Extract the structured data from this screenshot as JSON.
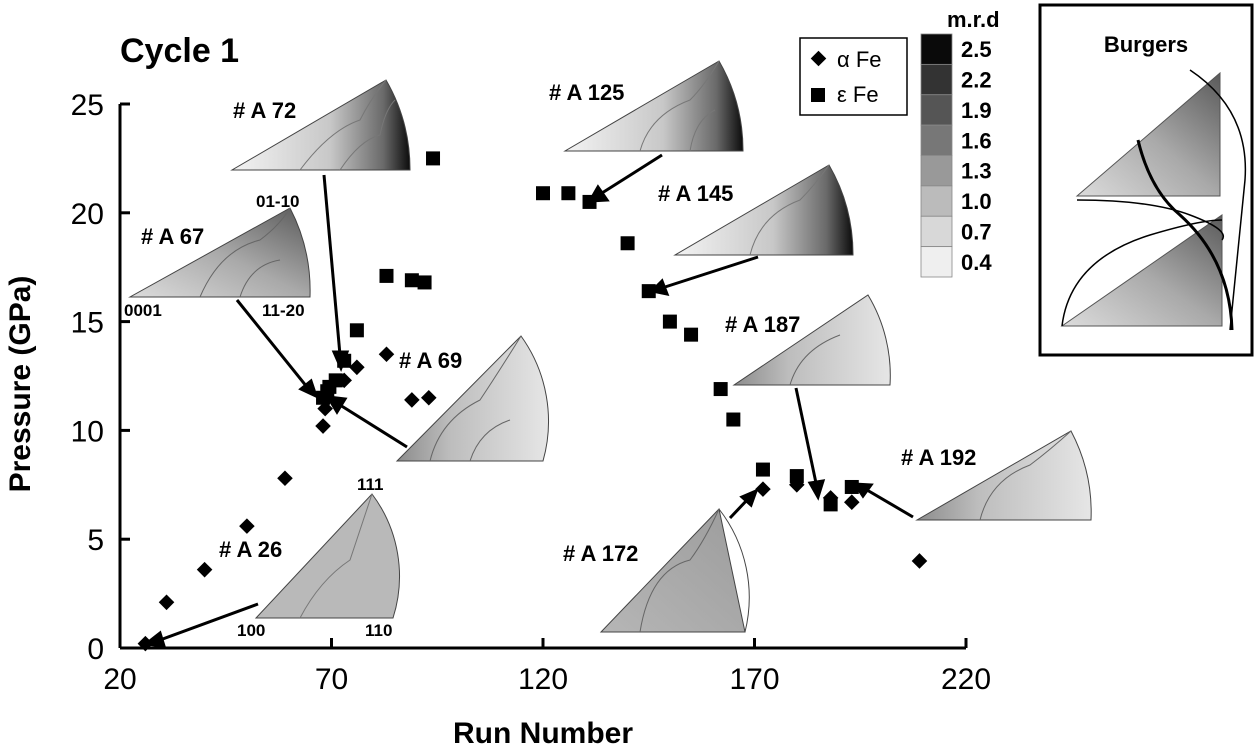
{
  "chart_data": {
    "type": "scatter",
    "title": "Cycle 1",
    "xlabel": "Run Number",
    "ylabel": "Pressure (GPa)",
    "xlim": [
      20,
      220
    ],
    "ylim": [
      0,
      25
    ],
    "xticks": [
      "20",
      "70",
      "120",
      "170",
      "220"
    ],
    "yticks": [
      "0",
      "5",
      "10",
      "15",
      "20",
      "25"
    ],
    "legend": {
      "position": "top-right",
      "entries": [
        "α Fe",
        "ε Fe"
      ]
    },
    "series": [
      {
        "name": "α Fe",
        "marker": "diamond",
        "points": [
          [
            26,
            0.2
          ],
          [
            31,
            2.1
          ],
          [
            40,
            3.6
          ],
          [
            50,
            5.6
          ],
          [
            59,
            7.8
          ],
          [
            68,
            10.2
          ],
          [
            68.5,
            11.0
          ],
          [
            69,
            11.5
          ],
          [
            73,
            12.3
          ],
          [
            76,
            12.9
          ],
          [
            83,
            13.5
          ],
          [
            89,
            11.4
          ],
          [
            93,
            11.5
          ],
          [
            172,
            7.3
          ],
          [
            180,
            7.5
          ],
          [
            188,
            6.9
          ],
          [
            193,
            6.7
          ],
          [
            209,
            4.0
          ]
        ]
      },
      {
        "name": "ε Fe",
        "marker": "square",
        "points": [
          [
            68,
            11.5
          ],
          [
            69,
            11.8
          ],
          [
            69.5,
            12.0
          ],
          [
            71,
            12.3
          ],
          [
            73,
            13.2
          ],
          [
            76,
            14.6
          ],
          [
            83,
            17.1
          ],
          [
            89,
            16.9
          ],
          [
            92,
            16.8
          ],
          [
            94,
            22.5
          ],
          [
            120,
            20.9
          ],
          [
            126,
            20.9
          ],
          [
            131,
            20.5
          ],
          [
            140,
            18.6
          ],
          [
            145,
            16.4
          ],
          [
            150,
            15.0
          ],
          [
            155,
            14.4
          ],
          [
            162,
            11.9
          ],
          [
            165,
            10.5
          ],
          [
            172,
            8.2
          ],
          [
            180,
            7.9
          ],
          [
            188,
            6.6
          ],
          [
            193,
            7.4
          ]
        ]
      }
    ],
    "annotations": [
      "# A 26",
      "# A 67",
      "# A 69",
      "# A 72",
      "# A 125",
      "# A 145",
      "# A 172",
      "# A 187",
      "# A 192"
    ],
    "pole_labels": [
      "111",
      "100",
      "110",
      "01-10",
      "0001",
      "11-20"
    ],
    "colorbar": {
      "title": "m.r.d",
      "values": [
        "2.5",
        "2.2",
        "1.9",
        "1.6",
        "1.3",
        "1.0",
        "0.7",
        "0.4"
      ]
    },
    "inset": {
      "title": "Burgers"
    }
  }
}
